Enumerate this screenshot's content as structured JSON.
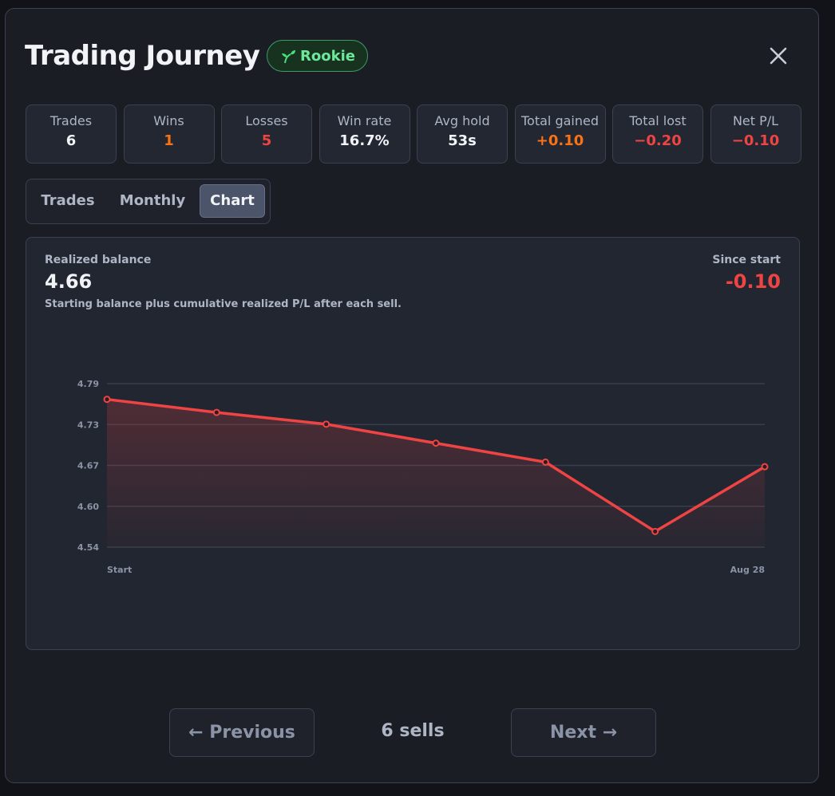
{
  "header": {
    "title": "Trading Journey",
    "badge": "Rookie"
  },
  "stats": [
    {
      "label": "Trades",
      "value": "6"
    },
    {
      "label": "Wins",
      "value": "1"
    },
    {
      "label": "Losses",
      "value": "5"
    },
    {
      "label": "Win rate",
      "value": "16.7%"
    },
    {
      "label": "Avg hold",
      "value": "53s"
    },
    {
      "label": "Total gained",
      "value": "+0.10"
    },
    {
      "label": "Total lost",
      "value": "−0.20"
    },
    {
      "label": "Net P/L",
      "value": "−0.10"
    }
  ],
  "tabs": [
    "Trades",
    "Monthly",
    "Chart"
  ],
  "panel": {
    "label": "Realized balance",
    "value": "4.66",
    "note": "Starting balance plus cumulative realized P/L after each sell.",
    "since_label": "Since start",
    "since_value": "-0.10"
  },
  "chart_data": {
    "type": "line",
    "color": "#ef4444",
    "categories": [
      "Start",
      null,
      null,
      null,
      null,
      null,
      "Aug 28"
    ],
    "values": [
      4.766,
      4.746,
      4.728,
      4.699,
      4.67,
      4.564,
      4.663
    ],
    "ylim": [
      4.54,
      4.79
    ],
    "yticks": [
      {
        "value": 4.54,
        "label": "4.54"
      },
      {
        "value": 4.6025,
        "label": "4.60"
      },
      {
        "value": 4.665,
        "label": "4.67"
      },
      {
        "value": 4.7275,
        "label": "4.73"
      },
      {
        "value": 4.79,
        "label": "4.79"
      }
    ],
    "grid": true
  },
  "footer": {
    "previous": "← Previous",
    "count": "6 sells",
    "next": "Next →"
  }
}
